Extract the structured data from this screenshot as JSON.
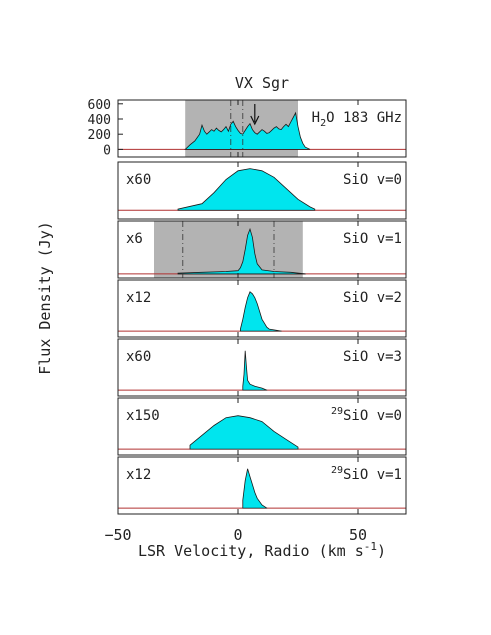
{
  "chart_data": {
    "type": "area",
    "title": "VX Sgr",
    "xlabel": "LSR Velocity, Radio (km s^-1)",
    "ylabel": "Flux Density (Jy)",
    "xlim": [
      -50,
      70
    ],
    "x_ticks": [
      -50,
      0,
      50
    ],
    "x_tick_labels": [
      "−50",
      "0",
      "50"
    ],
    "colors": {
      "fill": "#00e5ee",
      "outline": "#1a1a1a",
      "baseline": "#b03030",
      "shade": "#b3b3b3",
      "frame": "#222222"
    },
    "panels": [
      {
        "label": "H2O 183 GHz",
        "label_main": "H",
        "label_sub": "2",
        "label_rest": "O  183  GHz",
        "scale": "",
        "ylim": [
          -100,
          650
        ],
        "y_ticks": [
          0,
          200,
          400,
          600
        ],
        "shaded_range": [
          -22,
          25
        ],
        "dashed_lines": [
          -3,
          2
        ],
        "arrow_at": 7,
        "series": {
          "x": [
            -22,
            -20,
            -18,
            -16,
            -15,
            -14,
            -13,
            -12,
            -11,
            -10,
            -9,
            -8,
            -7,
            -6,
            -5,
            -4,
            -3,
            -2,
            -1,
            0,
            1,
            2,
            3,
            4,
            5,
            6,
            7,
            8,
            9,
            10,
            11,
            12,
            13,
            14,
            15,
            16,
            17,
            18,
            19,
            20,
            21,
            22,
            23,
            24,
            25,
            26,
            27,
            28,
            30
          ],
          "y": [
            0,
            60,
            110,
            200,
            320,
            240,
            200,
            230,
            260,
            240,
            280,
            250,
            230,
            260,
            300,
            240,
            330,
            370,
            300,
            250,
            210,
            200,
            250,
            300,
            340,
            260,
            220,
            200,
            230,
            260,
            240,
            210,
            220,
            250,
            280,
            300,
            270,
            260,
            300,
            330,
            300,
            360,
            420,
            480,
            300,
            160,
            80,
            30,
            0
          ]
        }
      },
      {
        "label": "SiO  v=0",
        "scale": "x60",
        "ylim": [
          -0.4,
          2.2
        ],
        "series": {
          "x": [
            -25,
            -15,
            -10,
            -5,
            0,
            5,
            10,
            15,
            20,
            25,
            30,
            32
          ],
          "y": [
            0.05,
            0.3,
            0.8,
            1.4,
            1.8,
            1.9,
            1.8,
            1.5,
            1.0,
            0.5,
            0.15,
            0.05
          ]
        }
      },
      {
        "label": "SiO  v=1",
        "scale": "x6",
        "ylim": [
          -0.1,
          1.3
        ],
        "shaded_range": [
          -35,
          27
        ],
        "dashed_lines": [
          -23,
          15
        ],
        "series": {
          "x": [
            -25,
            -15,
            -5,
            0,
            1,
            2,
            3,
            4,
            5,
            6,
            7,
            8,
            10,
            15,
            22,
            28
          ],
          "y": [
            0.02,
            0.04,
            0.06,
            0.08,
            0.15,
            0.3,
            0.6,
            0.95,
            1.1,
            0.9,
            0.5,
            0.25,
            0.1,
            0.06,
            0.04,
            0.0
          ]
        }
      },
      {
        "label": "SiO  v=2",
        "scale": "x12",
        "ylim": [
          -0.15,
          1.3
        ],
        "series": {
          "x": [
            1,
            2,
            3,
            4,
            5,
            6,
            7,
            8,
            9,
            10,
            11,
            12,
            13,
            15,
            18
          ],
          "y": [
            0.05,
            0.3,
            0.6,
            0.85,
            1.0,
            0.95,
            0.85,
            0.7,
            0.5,
            0.3,
            0.2,
            0.1,
            0.05,
            0.03,
            0.0
          ]
        }
      },
      {
        "label": "SiO  v=3",
        "scale": "x60",
        "ylim": [
          -0.15,
          1.3
        ],
        "series": {
          "x": [
            2,
            2.5,
            3,
            3.5,
            4,
            5,
            7,
            10,
            12
          ],
          "y": [
            0.1,
            0.4,
            1.0,
            0.6,
            0.25,
            0.15,
            0.1,
            0.05,
            0.0
          ]
        }
      },
      {
        "label": "29SiO  v=0",
        "label_sup": "29",
        "label_rest": "SiO  v=0",
        "scale": "x150",
        "ylim": [
          -0.15,
          1.3
        ],
        "series": {
          "x": [
            -20,
            -15,
            -10,
            -5,
            0,
            5,
            10,
            15,
            20,
            25
          ],
          "y": [
            0.1,
            0.35,
            0.6,
            0.8,
            0.85,
            0.8,
            0.7,
            0.45,
            0.25,
            0.05
          ]
        }
      },
      {
        "label": "29SiO  v=1",
        "label_sup": "29",
        "label_rest": "SiO  v=1",
        "scale": "x12",
        "ylim": [
          -0.15,
          1.3
        ],
        "series": {
          "x": [
            2,
            3,
            4,
            5,
            6,
            7,
            8,
            10,
            12
          ],
          "y": [
            0.2,
            0.7,
            1.0,
            0.8,
            0.6,
            0.4,
            0.25,
            0.08,
            0.0
          ]
        }
      }
    ]
  }
}
